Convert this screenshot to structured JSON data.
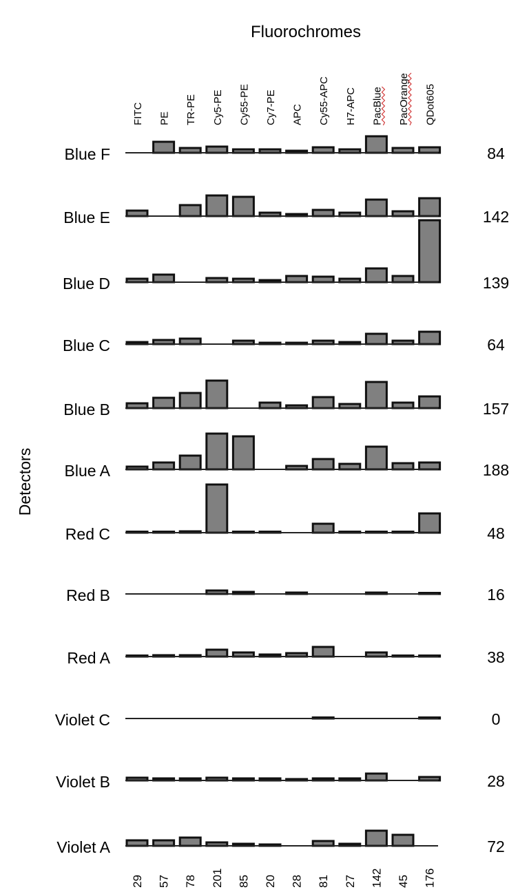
{
  "chart_data": {
    "type": "bar",
    "title": "Fluorochromes",
    "ylabel": "Detectors",
    "categories": [
      "FITC",
      "PE",
      "TR-PE",
      "Cy5-PE",
      "Cy55-PE",
      "Cy7-PE",
      "APC",
      "Cy55-APC",
      "H7-APC",
      "PacBlue",
      "PacOrange",
      "QDot605"
    ],
    "category_totals": [
      "29",
      "57",
      "78",
      "201",
      "85",
      "20",
      "28",
      "81",
      "27",
      "142",
      "45",
      "176"
    ],
    "underlined_categories": [
      "PacBlue",
      "PacOrange"
    ],
    "series": [
      {
        "name": "Blue F",
        "total": "84",
        "values": [
          0,
          16,
          7,
          9,
          5,
          5,
          3,
          8,
          5,
          24,
          7,
          8
        ]
      },
      {
        "name": "Blue E",
        "total": "142",
        "values": [
          8,
          0,
          16,
          30,
          28,
          5,
          3,
          9,
          5,
          24,
          7,
          26
        ]
      },
      {
        "name": "Blue D",
        "total": "139",
        "values": [
          5,
          11,
          0,
          6,
          5,
          3,
          9,
          8,
          5,
          20,
          9,
          90
        ]
      },
      {
        "name": "Blue C",
        "total": "64",
        "values": [
          3,
          6,
          8,
          0,
          5,
          2,
          2,
          5,
          3,
          15,
          5,
          18
        ]
      },
      {
        "name": "Blue B",
        "total": "157",
        "values": [
          7,
          15,
          22,
          40,
          0,
          8,
          4,
          16,
          6,
          38,
          8,
          17
        ]
      },
      {
        "name": "Blue A",
        "total": "188",
        "values": [
          4,
          10,
          20,
          52,
          48,
          0,
          5,
          15,
          8,
          33,
          9,
          10
        ]
      },
      {
        "name": "Red C",
        "total": "48",
        "values": [
          1,
          1,
          2,
          70,
          1,
          1,
          0,
          13,
          1,
          1,
          1,
          28
        ]
      },
      {
        "name": "Red B",
        "total": "16",
        "values": [
          0,
          0,
          0,
          5,
          3,
          0,
          2,
          0,
          0,
          2,
          0,
          1
        ]
      },
      {
        "name": "Red A",
        "total": "38",
        "values": [
          1,
          2,
          2,
          10,
          6,
          3,
          5,
          14,
          0,
          6,
          1,
          1
        ]
      },
      {
        "name": "Violet C",
        "total": "0",
        "values": [
          0,
          0,
          0,
          0,
          0,
          0,
          0,
          1,
          0,
          0,
          0,
          1
        ]
      },
      {
        "name": "Violet B",
        "total": "28",
        "values": [
          4,
          3,
          3,
          4,
          3,
          3,
          2,
          3,
          3,
          10,
          0,
          5
        ]
      },
      {
        "name": "Violet A",
        "total": "72",
        "values": [
          8,
          8,
          12,
          5,
          3,
          2,
          0,
          7,
          3,
          22,
          16,
          0
        ]
      }
    ],
    "grid": false,
    "legend": "none"
  }
}
